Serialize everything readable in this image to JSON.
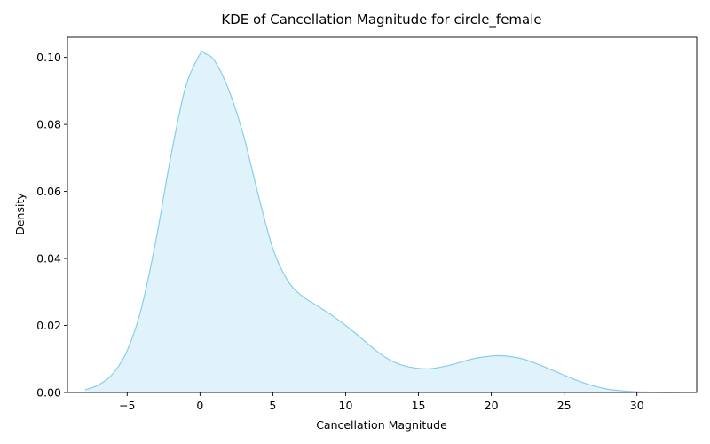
{
  "chart_data": {
    "type": "area",
    "title": "KDE of Cancellation Magnitude for circle_female",
    "xlabel": "Cancellation Magnitude",
    "ylabel": "Density",
    "xlim": [
      -9.1,
      34.1
    ],
    "ylim": [
      0,
      0.106
    ],
    "x_ticks": [
      -5,
      0,
      5,
      10,
      15,
      20,
      25,
      30
    ],
    "x_tick_labels": [
      "−5",
      "0",
      "5",
      "10",
      "15",
      "20",
      "25",
      "30"
    ],
    "y_ticks": [
      0,
      0.02,
      0.04,
      0.06,
      0.08,
      0.1
    ],
    "y_tick_labels": [
      "0.00",
      "0.02",
      "0.04",
      "0.06",
      "0.08",
      "0.10"
    ],
    "grid": false,
    "legend": "none",
    "series": [
      {
        "color": "#87ceeb",
        "fill_color": "#87ceeb",
        "fill_opacity": 0.25,
        "x": [
          -7.9,
          -7.0,
          -6.0,
          -5.0,
          -4.0,
          -3.0,
          -2.0,
          -1.0,
          0.0,
          0.3,
          1.0,
          2.0,
          3.0,
          4.0,
          5.0,
          6.0,
          7.0,
          8.0,
          9.0,
          10.0,
          11.0,
          12.0,
          13.0,
          14.0,
          15.0,
          15.8,
          17.0,
          18.0,
          19.0,
          20.0,
          20.5,
          21.0,
          22.0,
          23.0,
          24.0,
          25.0,
          26.0,
          27.0,
          28.0,
          29.0,
          30.0,
          31.0,
          32.0,
          32.9
        ],
        "y": [
          0.0008,
          0.0022,
          0.0055,
          0.0125,
          0.0255,
          0.046,
          0.0705,
          0.091,
          0.101,
          0.1012,
          0.099,
          0.09,
          0.0765,
          0.059,
          0.043,
          0.0335,
          0.0288,
          0.026,
          0.0232,
          0.02,
          0.0165,
          0.0128,
          0.0098,
          0.008,
          0.0072,
          0.0071,
          0.008,
          0.0092,
          0.0103,
          0.0109,
          0.011,
          0.0109,
          0.0102,
          0.0088,
          0.007,
          0.0052,
          0.0034,
          0.002,
          0.001,
          0.0005,
          0.0002,
          0.0001,
          0.0,
          0.0
        ]
      }
    ]
  }
}
